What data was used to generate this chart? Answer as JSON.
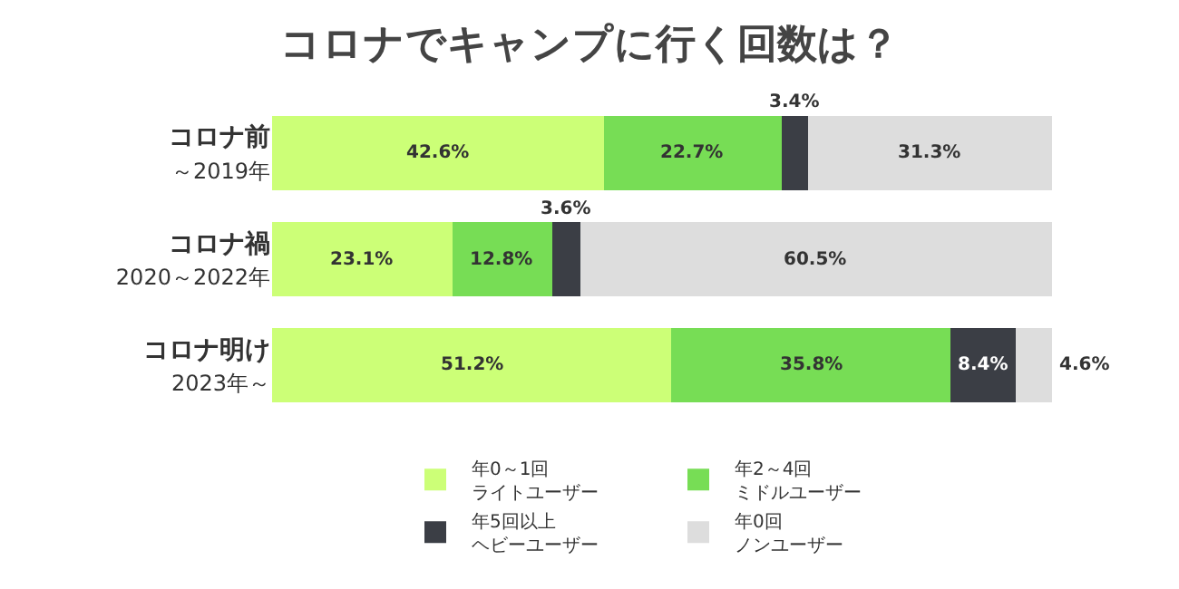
{
  "chart_data": {
    "type": "bar",
    "orientation": "horizontal",
    "stacked": true,
    "title": "コロナでキャンプに行く回数は？",
    "categories": [
      "コロナ前～2019年",
      "コロナ禍2020～2022年",
      "コロナ明け2023年～"
    ],
    "series": [
      {
        "name": "年0～1回ライトユーザー",
        "color": "#ccff77",
        "values": [
          42.6,
          23.1,
          51.2
        ],
        "value_labels": [
          "42.6%",
          "23.1%",
          "51.2%"
        ]
      },
      {
        "name": "年2～4回ミドルユーザー",
        "color": "#77dd55",
        "values": [
          22.7,
          12.8,
          35.8
        ],
        "value_labels": [
          "22.7%",
          "12.8%",
          "35.8%"
        ]
      },
      {
        "name": "年5回以上ヘビーユーザー",
        "color": "#3b3e45",
        "values": [
          3.4,
          3.6,
          8.4
        ],
        "value_labels": [
          "3.4%",
          "3.6%",
          "8.4%"
        ]
      },
      {
        "name": "年0回ノンユーザー",
        "color": "#dddddd",
        "values": [
          31.3,
          60.5,
          4.6
        ],
        "value_labels": [
          "31.3%",
          "60.5%",
          "4.6%"
        ]
      }
    ],
    "legend": "bottom"
  }
}
